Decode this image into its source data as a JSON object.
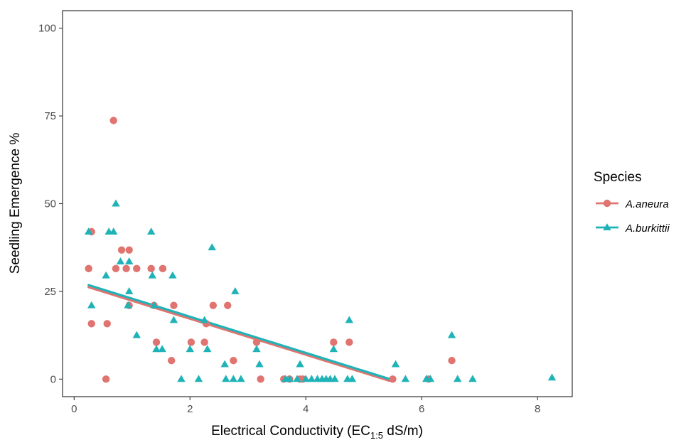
{
  "chart_data": {
    "type": "scatter",
    "xlabel": {
      "prefix": "Electrical Conductivity (EC",
      "subscript": "1:5",
      "suffix": " dS/m)"
    },
    "ylabel": "Seedling Emergence %",
    "xlim": [
      -0.2,
      8.6
    ],
    "ylim": [
      -5,
      105
    ],
    "x_ticks": [
      0,
      2,
      4,
      6,
      8
    ],
    "y_ticks": [
      0,
      25,
      50,
      75,
      100
    ],
    "grid": false,
    "legend": {
      "title": "Species",
      "position": "right"
    },
    "series": [
      {
        "name": "A.aneura",
        "color": "#e07470",
        "marker": "circle",
        "points": [
          [
            0.25,
            31.5
          ],
          [
            0.3,
            42
          ],
          [
            0.3,
            15.8
          ],
          [
            0.55,
            0
          ],
          [
            0.57,
            15.8
          ],
          [
            0.68,
            73.7
          ],
          [
            0.72,
            31.5
          ],
          [
            0.82,
            36.8
          ],
          [
            0.9,
            31.5
          ],
          [
            0.95,
            36.8
          ],
          [
            0.95,
            21
          ],
          [
            1.08,
            31.5
          ],
          [
            1.33,
            31.5
          ],
          [
            1.38,
            21
          ],
          [
            1.42,
            10.5
          ],
          [
            1.53,
            31.5
          ],
          [
            1.68,
            5.3
          ],
          [
            1.72,
            21
          ],
          [
            2.02,
            10.5
          ],
          [
            2.25,
            10.5
          ],
          [
            2.28,
            15.8
          ],
          [
            2.4,
            21
          ],
          [
            2.65,
            21
          ],
          [
            2.75,
            5.3
          ],
          [
            3.15,
            10.5
          ],
          [
            3.22,
            0
          ],
          [
            3.62,
            0
          ],
          [
            3.72,
            0
          ],
          [
            3.9,
            0
          ],
          [
            3.95,
            0
          ],
          [
            4.48,
            10.5
          ],
          [
            4.75,
            10.5
          ],
          [
            5.5,
            0
          ],
          [
            6.12,
            0
          ],
          [
            6.52,
            5.3
          ]
        ],
        "trend": {
          "x": [
            0.25,
            5.45
          ],
          "y": [
            26.2,
            -0.5
          ]
        }
      },
      {
        "name": "A.burkittii",
        "color": "#1fb3b8",
        "marker": "triangle",
        "points": [
          [
            0.25,
            42
          ],
          [
            0.3,
            21
          ],
          [
            0.55,
            29.5
          ],
          [
            0.6,
            42
          ],
          [
            0.68,
            42
          ],
          [
            0.72,
            50
          ],
          [
            0.8,
            33.5
          ],
          [
            0.95,
            25
          ],
          [
            0.95,
            33.5
          ],
          [
            0.93,
            21
          ],
          [
            1.08,
            12.5
          ],
          [
            1.33,
            42
          ],
          [
            1.35,
            29.5
          ],
          [
            1.38,
            21
          ],
          [
            1.42,
            8.5
          ],
          [
            1.52,
            8.5
          ],
          [
            1.7,
            29.5
          ],
          [
            1.72,
            16.8
          ],
          [
            1.85,
            0
          ],
          [
            2.0,
            8.5
          ],
          [
            2.15,
            0
          ],
          [
            2.25,
            16.8
          ],
          [
            2.3,
            8.5
          ],
          [
            2.38,
            37.5
          ],
          [
            2.6,
            4.2
          ],
          [
            2.62,
            0
          ],
          [
            2.75,
            0
          ],
          [
            2.78,
            25
          ],
          [
            2.88,
            0
          ],
          [
            3.15,
            8.5
          ],
          [
            3.2,
            4.2
          ],
          [
            3.65,
            0
          ],
          [
            3.72,
            0
          ],
          [
            3.85,
            0
          ],
          [
            3.9,
            4.2
          ],
          [
            4.0,
            0
          ],
          [
            4.1,
            0
          ],
          [
            4.2,
            0
          ],
          [
            4.28,
            0
          ],
          [
            4.35,
            0
          ],
          [
            4.42,
            0
          ],
          [
            4.5,
            0
          ],
          [
            4.48,
            8.5
          ],
          [
            4.72,
            0
          ],
          [
            4.75,
            16.8
          ],
          [
            4.8,
            0
          ],
          [
            5.55,
            4.2
          ],
          [
            5.72,
            0
          ],
          [
            6.08,
            0
          ],
          [
            6.15,
            0
          ],
          [
            6.52,
            12.5
          ],
          [
            6.62,
            0
          ],
          [
            6.88,
            0
          ],
          [
            8.25,
            0.4
          ]
        ],
        "trend": {
          "x": [
            0.25,
            5.45
          ],
          "y": [
            26.8,
            0
          ]
        }
      }
    ]
  }
}
